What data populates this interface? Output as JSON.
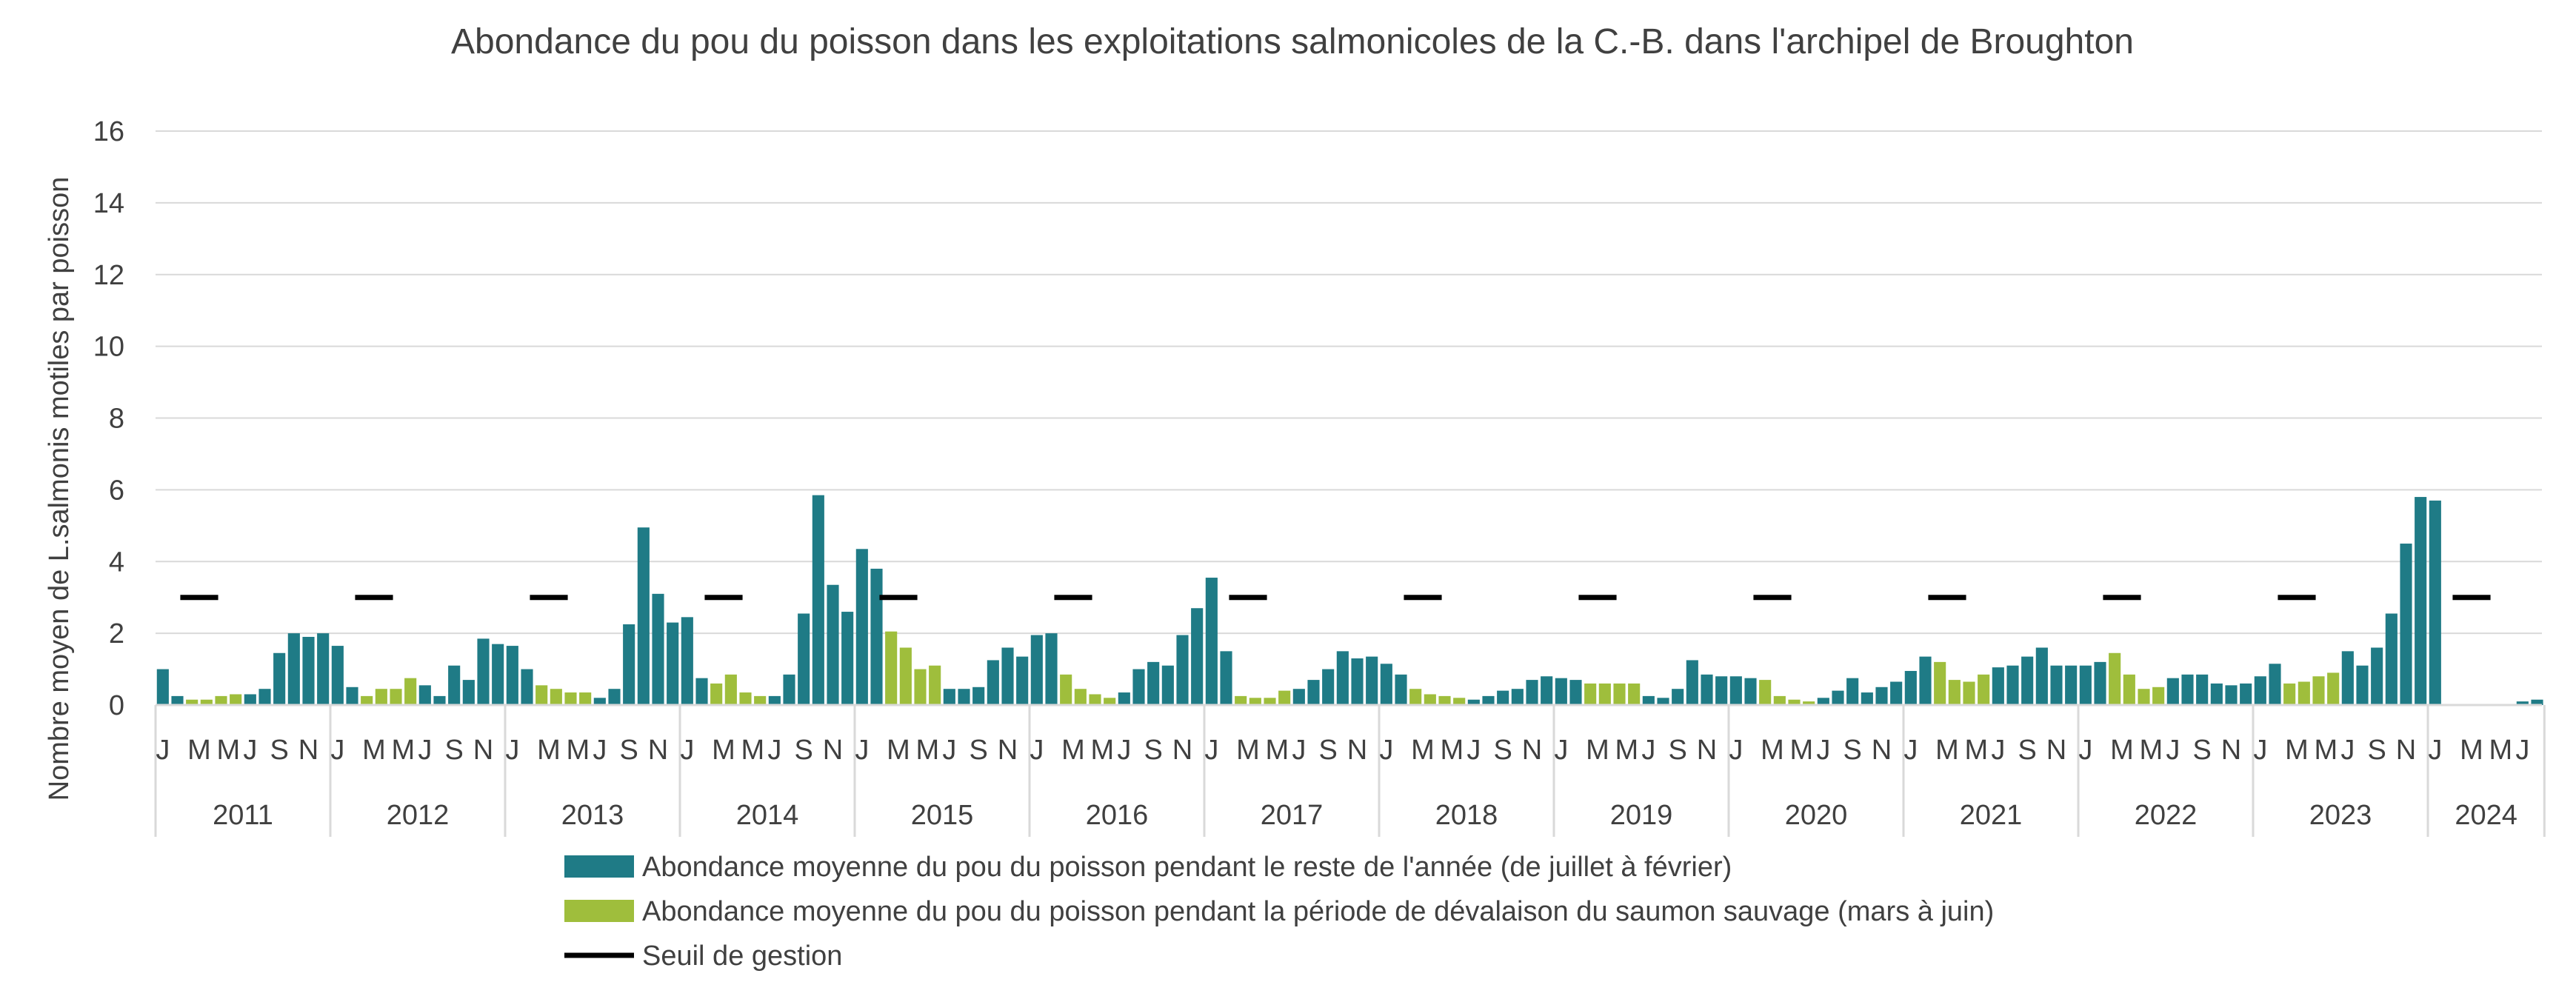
{
  "chart_data": {
    "type": "bar",
    "title": "Abondance du pou du poisson dans les exploitations salmonicoles de la C.-B. dans l'archipel de Broughton",
    "ylabel": "Nombre moyen de L.salmonis motiles par poisson",
    "xlabel": "",
    "ylim": [
      0,
      16
    ],
    "yticks": [
      0,
      2,
      4,
      6,
      8,
      10,
      12,
      14,
      16
    ],
    "grid": true,
    "legend_position": "bottom",
    "colors": {
      "rest_of_year": "#1F7B86",
      "outmigration": "#9FBE3C",
      "threshold": "#000000",
      "grid": "#D9D9D9",
      "text": "#404040"
    },
    "legend": [
      {
        "key": "rest_of_year",
        "label": "Abondance moyenne du pou du poisson pendant le reste de l'année (de juillet à février)"
      },
      {
        "key": "outmigration",
        "label": "Abondance moyenne du pou du poisson pendant la période de dévalaison du saumon sauvage (mars à juin)"
      },
      {
        "key": "threshold",
        "label": "Seuil de gestion"
      }
    ],
    "threshold_value": 3,
    "month_labels": [
      "J",
      "",
      "M",
      "",
      "M",
      "",
      "J",
      "",
      "S",
      "",
      "N",
      ""
    ],
    "years": [
      {
        "year": "2011",
        "values": [
          1.0,
          0.25,
          0.15,
          0.15,
          0.25,
          0.3,
          0.3,
          0.45,
          1.45,
          2.0,
          1.9,
          2.0
        ]
      },
      {
        "year": "2012",
        "values": [
          1.65,
          0.5,
          0.25,
          0.45,
          0.45,
          0.75,
          0.55,
          0.25,
          1.1,
          0.7,
          1.85,
          1.7
        ]
      },
      {
        "year": "2013",
        "values": [
          1.65,
          1.0,
          0.55,
          0.45,
          0.35,
          0.35,
          0.2,
          0.45,
          2.25,
          4.95,
          3.1,
          2.3
        ]
      },
      {
        "year": "2014",
        "values": [
          2.45,
          0.75,
          0.6,
          0.85,
          0.35,
          0.25,
          0.25,
          0.85,
          2.55,
          5.85,
          3.35,
          2.6
        ]
      },
      {
        "year": "2015",
        "values": [
          4.35,
          3.8,
          2.05,
          1.6,
          1.0,
          1.1,
          0.45,
          0.45,
          0.5,
          1.25,
          1.6,
          1.35
        ]
      },
      {
        "year": "2016",
        "values": [
          1.95,
          2.0,
          0.85,
          0.45,
          0.3,
          0.2,
          0.35,
          1.0,
          1.2,
          1.1,
          1.95,
          2.7
        ]
      },
      {
        "year": "2017",
        "values": [
          3.55,
          1.5,
          0.25,
          0.2,
          0.2,
          0.4,
          0.45,
          0.7,
          1.0,
          1.5,
          1.3,
          1.35
        ]
      },
      {
        "year": "2018",
        "values": [
          1.15,
          0.85,
          0.45,
          0.3,
          0.25,
          0.2,
          0.15,
          0.25,
          0.4,
          0.45,
          0.7,
          0.8
        ]
      },
      {
        "year": "2019",
        "values": [
          0.75,
          0.7,
          0.6,
          0.6,
          0.6,
          0.6,
          0.25,
          0.2,
          0.45,
          1.25,
          0.85,
          0.8
        ]
      },
      {
        "year": "2020",
        "values": [
          0.8,
          0.75,
          0.7,
          0.25,
          0.15,
          0.1,
          0.2,
          0.4,
          0.75,
          0.35,
          0.5,
          0.65
        ]
      },
      {
        "year": "2021",
        "values": [
          0.95,
          1.35,
          1.2,
          0.7,
          0.65,
          0.85,
          1.05,
          1.1,
          1.35,
          1.6,
          1.1,
          1.1
        ]
      },
      {
        "year": "2022",
        "values": [
          1.1,
          1.2,
          1.45,
          0.85,
          0.45,
          0.5,
          0.75,
          0.85,
          0.85,
          0.6,
          0.55,
          0.6
        ]
      },
      {
        "year": "2023",
        "values": [
          0.8,
          1.15,
          0.6,
          0.65,
          0.8,
          0.9,
          1.5,
          1.1,
          1.6,
          2.55,
          4.5,
          5.8
        ]
      },
      {
        "year": "2024",
        "values": [
          5.7,
          null,
          null,
          null,
          null,
          null,
          0.1,
          0.15
        ],
        "labels": [
          "J",
          "",
          "M",
          "",
          "M",
          "",
          "J",
          ""
        ]
      }
    ]
  }
}
